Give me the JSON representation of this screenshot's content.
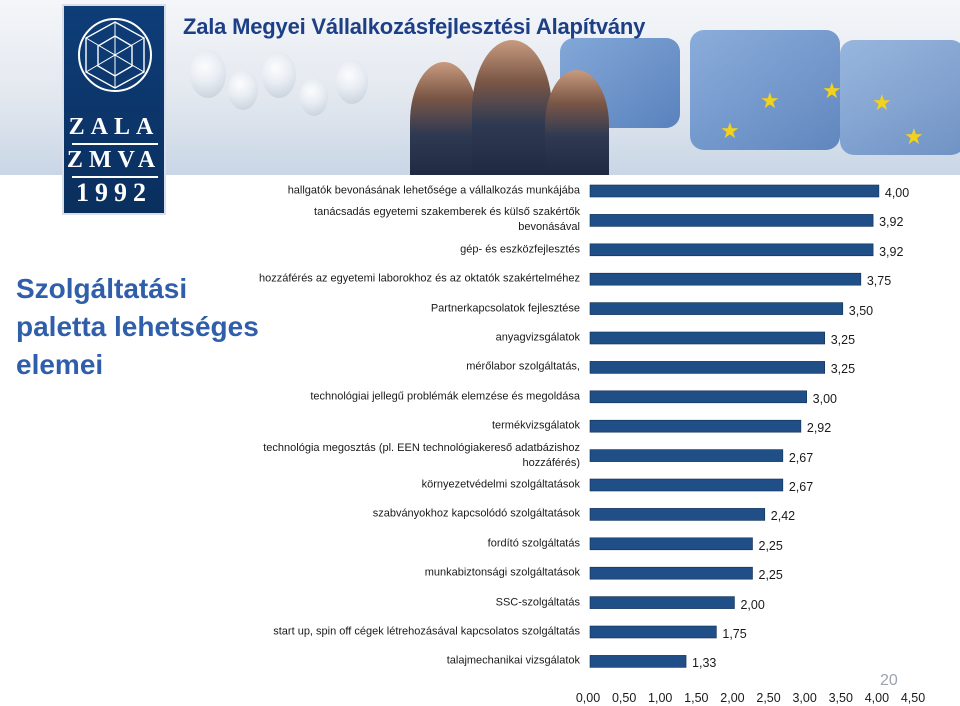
{
  "banner": {
    "title": "Zala Megyei Vállalkozásfejlesztési Alapítvány",
    "logo": {
      "line1": "ZALA",
      "line2": "ZMVA",
      "line3": "1992"
    }
  },
  "side_title": {
    "line1": "Szolgáltatási",
    "line2": "paletta lehetséges",
    "line3": "elemei"
  },
  "page_number": "20",
  "colors": {
    "bar_fill": "#1f4f86",
    "bar_stroke": "#0f2f55",
    "title": "#2f5faa",
    "banner_title": "#1d3f86"
  },
  "chart_data": {
    "type": "bar",
    "orientation": "horizontal",
    "categories": [
      "hallgatók bevonásának lehetősége a vállalkozás munkájába",
      "tanácsadás egyetemi szakemberek és külső szakértők bevonásával",
      "gép- és eszközfejlesztés",
      "hozzáférés az egyetemi laborokhoz és az oktatók szakértelméhez",
      "Partnerkapcsolatok fejlesztése",
      "anyagvizsgálatok",
      "mérőlabor szolgáltatás,",
      "technológiai jellegű problémák elemzése és megoldása",
      "termékvizsgálatok",
      "technológia megosztás (pl. EEN technológiakereső adatbázishoz hozzáférés)",
      "környezetvédelmi szolgáltatások",
      "szabványokhoz kapcsolódó szolgáltatások",
      "fordító szolgáltatás",
      "munkabiztonsági szolgáltatások",
      "SSC-szolgáltatás",
      "start up, spin off cégek létrehozásával kapcsolatos szolgáltatás",
      "talajmechanikai vizsgálatok"
    ],
    "category_lines": [
      [
        "hallgatók bevonásának lehetősége a vállalkozás munkájába"
      ],
      [
        "tanácsadás egyetemi szakemberek és külső szakértők",
        "bevonásával"
      ],
      [
        "gép- és eszközfejlesztés"
      ],
      [
        "hozzáférés az egyetemi laborokhoz és az oktatók szakértelméhez"
      ],
      [
        "Partnerkapcsolatok fejlesztése"
      ],
      [
        "anyagvizsgálatok"
      ],
      [
        "mérőlabor szolgáltatás,"
      ],
      [
        "technológiai jellegű problémák elemzése és megoldása"
      ],
      [
        "termékvizsgálatok"
      ],
      [
        "technológia megosztás (pl. EEN technológiakereső adatbázishoz",
        "hozzáférés)"
      ],
      [
        "környezetvédelmi szolgáltatások"
      ],
      [
        "szabványokhoz kapcsolódó szolgáltatások"
      ],
      [
        "fordító szolgáltatás"
      ],
      [
        "munkabiztonsági szolgáltatások"
      ],
      [
        "SSC-szolgáltatás"
      ],
      [
        "start up, spin off cégek létrehozásával kapcsolatos szolgáltatás"
      ],
      [
        "talajmechanikai vizsgálatok"
      ]
    ],
    "values": [
      4.0,
      3.92,
      3.92,
      3.75,
      3.5,
      3.25,
      3.25,
      3.0,
      2.92,
      2.67,
      2.67,
      2.42,
      2.25,
      2.25,
      2.0,
      1.75,
      1.33
    ],
    "value_labels": [
      "4,00",
      "3,92",
      "3,92",
      "3,75",
      "3,50",
      "3,25",
      "3,25",
      "3,00",
      "2,92",
      "2,67",
      "2,67",
      "2,42",
      "2,25",
      "2,25",
      "2,00",
      "1,75",
      "1,33"
    ],
    "xlim": [
      0,
      4.5
    ],
    "xticks": [
      0,
      0.5,
      1,
      1.5,
      2,
      2.5,
      3,
      3.5,
      4,
      4.5
    ],
    "xtick_labels": [
      "0,00",
      "0,50",
      "1,00",
      "1,50",
      "2,00",
      "2,50",
      "3,00",
      "3,50",
      "4,00",
      "4,50"
    ],
    "title": "",
    "xlabel": "",
    "ylabel": "",
    "grid": false,
    "legend": "none"
  }
}
